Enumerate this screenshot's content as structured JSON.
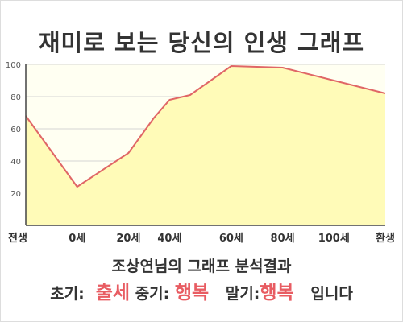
{
  "chart_data": {
    "type": "area",
    "title": "재미로 보는 당신의 인생 그래프",
    "categories": [
      "전생",
      "0세",
      "20세",
      "40세",
      "60세",
      "80세",
      "100세",
      "환생"
    ],
    "x": [
      -20,
      0,
      20,
      30,
      36,
      44,
      60,
      80,
      100,
      120
    ],
    "x_labels": [
      "전생",
      "0세",
      "20세",
      "",
      "40세",
      "",
      "60세",
      "80세",
      "100세",
      "환생"
    ],
    "values": [
      68,
      24,
      45,
      67,
      78,
      81,
      99,
      98,
      90,
      82
    ],
    "ylim": [
      0,
      100
    ],
    "yticks": [
      20,
      40,
      60,
      80,
      100
    ],
    "grid": true,
    "colors": {
      "line": "#e06666",
      "fill": "#fffbb8",
      "plot_bg": "#fffff2",
      "grid": "#d4d4d4",
      "axis": "#444444"
    }
  },
  "analysis": {
    "title": "조상연님의 그래프 분석결과",
    "early_label": "초기:",
    "early_value": "출세",
    "mid_label": "중기:",
    "mid_value": "행복",
    "late_label": "말기:",
    "late_value": "행복",
    "ending": "입니다"
  }
}
